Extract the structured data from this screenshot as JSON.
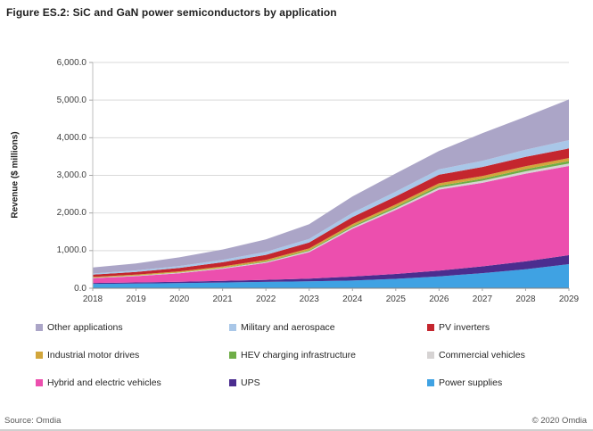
{
  "title": "Figure ES.2: SiC and GaN power semiconductors by application",
  "footer": {
    "source": "Source: Omdia",
    "copyright": "© 2020 Omdia"
  },
  "colors": {
    "gridline": "#D9D9D9",
    "y_axis_line": "#BFBFBF",
    "x_axis_line": "#808080",
    "tick_mark": "#A6A6A6",
    "tick_text": "#404040",
    "title_text": "#1F1F1F"
  },
  "chart_data": {
    "type": "area",
    "stacked": true,
    "title": "Figure ES.2: SiC and GaN power semiconductors by application",
    "xlabel": "",
    "ylabel": "Revenue ($ millions)",
    "ylim": [
      0,
      6000
    ],
    "ytick_step": 1000,
    "ytick_labels": [
      "0.0",
      "1,000.0",
      "2,000.0",
      "3,000.0",
      "4,000.0",
      "5,000.0",
      "6,000.0"
    ],
    "grid": true,
    "legend_position": "bottom",
    "x": [
      "2018",
      "2019",
      "2020",
      "2021",
      "2022",
      "2023",
      "2024",
      "2025",
      "2026",
      "2027",
      "2028",
      "2029"
    ],
    "series": [
      {
        "name": "Power supplies",
        "color": "#3FA2E3",
        "values": [
          115,
          125,
          138,
          152,
          168,
          185,
          205,
          250,
          315,
          400,
          505,
          640
        ]
      },
      {
        "name": "UPS",
        "color": "#4B2D8F",
        "values": [
          25,
          30,
          36,
          44,
          55,
          72,
          105,
          130,
          155,
          180,
          210,
          240
        ]
      },
      {
        "name": "Hybrid and electric vehicles",
        "color": "#EC4FAE",
        "values": [
          125,
          165,
          225,
          320,
          450,
          700,
          1270,
          1700,
          2150,
          2220,
          2330,
          2370
        ]
      },
      {
        "name": "Commercial vehicles",
        "color": "#D6D3D3",
        "values": [
          10,
          12,
          15,
          19,
          25,
          32,
          40,
          46,
          52,
          57,
          62,
          66
        ]
      },
      {
        "name": "HEV charging infrastructure",
        "color": "#6FAD47",
        "values": [
          5,
          6,
          8,
          11,
          15,
          21,
          30,
          40,
          48,
          54,
          60,
          64
        ]
      },
      {
        "name": "Industrial motor drives",
        "color": "#D2A63C",
        "values": [
          18,
          22,
          27,
          33,
          40,
          47,
          55,
          62,
          68,
          73,
          77,
          80
        ]
      },
      {
        "name": "PV inverters",
        "color": "#C4262E",
        "values": [
          62,
          75,
          92,
          112,
          135,
          160,
          188,
          212,
          228,
          238,
          248,
          256
        ]
      },
      {
        "name": "Military and aerospace",
        "color": "#A9C7E8",
        "values": [
          32,
          40,
          50,
          62,
          77,
          93,
          112,
          128,
          145,
          165,
          190,
          218
        ]
      },
      {
        "name": "Other applications",
        "color": "#ABA5C7",
        "values": [
          158,
          185,
          229,
          277,
          335,
          390,
          435,
          482,
          489,
          733,
          878,
          1084
        ]
      }
    ],
    "legend_order": [
      "Other applications",
      "Military and aerospace",
      "PV inverters",
      "Industrial motor drives",
      "HEV charging infrastructure",
      "Commercial vehicles",
      "Hybrid and electric vehicles",
      "UPS",
      "Power supplies"
    ]
  }
}
